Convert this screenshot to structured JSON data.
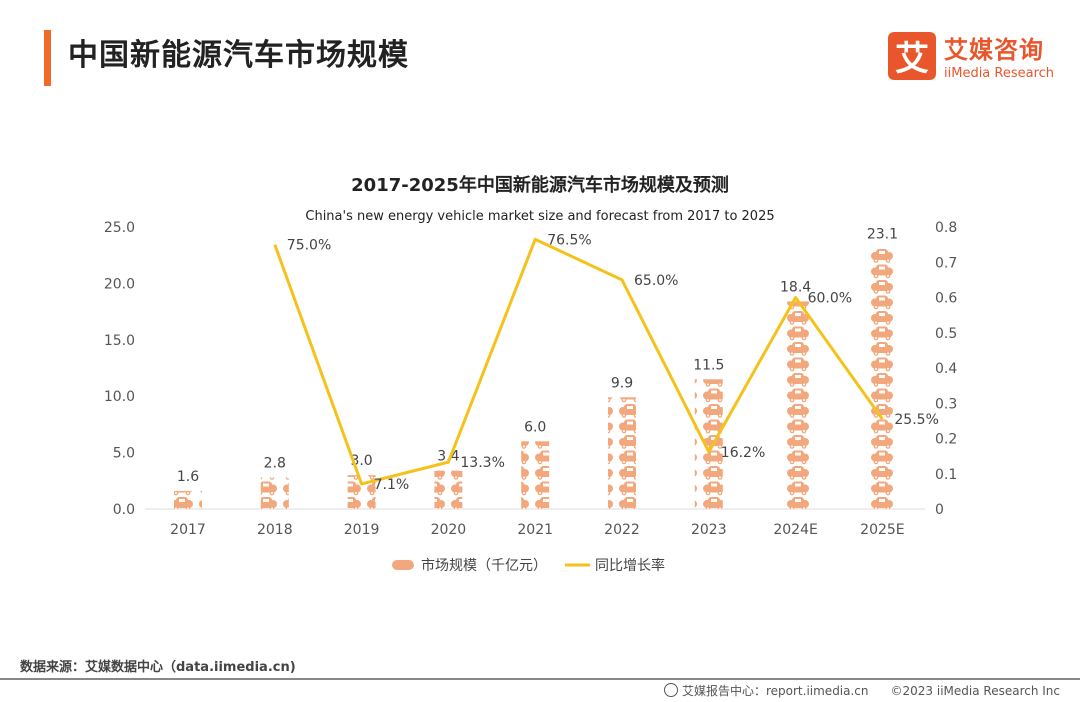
{
  "header": {
    "title": "中国新能源汽车市场规模"
  },
  "logo": {
    "mark": "艾",
    "cn": "艾媒咨询",
    "en": "iiMedia Research"
  },
  "chart_data": {
    "type": "bar+line",
    "title": "2017-2025年中国新能源汽车市场规模及预测",
    "subtitle": "China's new energy vehicle market size and forecast from 2017 to 2025",
    "categories": [
      "2017",
      "2018",
      "2019",
      "2020",
      "2021",
      "2022",
      "2023",
      "2024E",
      "2025E"
    ],
    "series": [
      {
        "name": "市场规模（千亿元）",
        "type": "bar",
        "axis": "left",
        "values": [
          1.6,
          2.8,
          3.0,
          3.4,
          6.0,
          9.9,
          11.5,
          18.4,
          23.1
        ],
        "labels": [
          "1.6",
          "2.8",
          "3.0",
          "3.4",
          "6.0",
          "9.9",
          "11.5",
          "18.4",
          "23.1"
        ],
        "color": "#f2a87c"
      },
      {
        "name": "同比增长率",
        "type": "line",
        "axis": "right",
        "values": [
          null,
          0.75,
          0.071,
          0.133,
          0.765,
          0.65,
          0.162,
          0.6,
          0.255
        ],
        "labels": [
          "",
          "75.0%",
          "7.1%",
          "13.3%",
          "76.5%",
          "65.0%",
          "16.2%",
          "60.0%",
          "25.5%"
        ],
        "color": "#f5c21b"
      }
    ],
    "y_left": {
      "min": 0,
      "max": 25,
      "ticks": [
        "0.0",
        "5.0",
        "10.0",
        "15.0",
        "20.0",
        "25.0"
      ]
    },
    "y_right": {
      "min": 0,
      "max": 0.8,
      "ticks": [
        "0",
        "0.1",
        "0.2",
        "0.3",
        "0.4",
        "0.5",
        "0.6",
        "0.7",
        "0.8"
      ]
    },
    "grid": false,
    "legend": "bottom"
  },
  "footer": {
    "source": "数据来源：艾媒数据中心（data.iimedia.cn)",
    "report": "艾媒报告中心：report.iimedia.cn",
    "copyright": "©2023  iiMedia Research  Inc"
  }
}
